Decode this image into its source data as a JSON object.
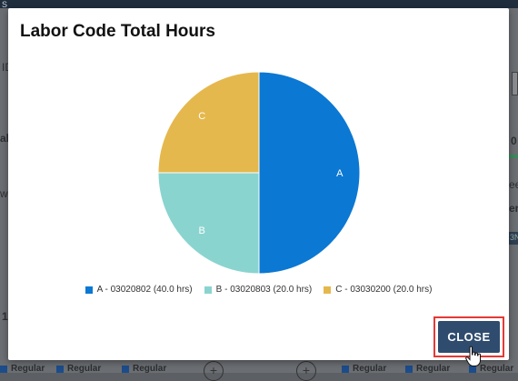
{
  "background": {
    "fragments": [
      "S",
      "ID",
      "al",
      "w",
      "1",
      "0",
      "ee",
      "er",
      "3N"
    ],
    "row_tags": [
      "Regular",
      "Regular",
      "Regular",
      "Regular",
      "Regular",
      "Regular"
    ],
    "plus_glyph": "+"
  },
  "dialog": {
    "title": "Labor Code Total Hours",
    "close_label": "CLOSE"
  },
  "chart_data": {
    "type": "pie",
    "title": "Labor Code Total Hours",
    "slices": [
      {
        "label": "A",
        "legend": "A - 03020802 (40.0 hrs)",
        "value": 40.0,
        "color": "#0b78d3"
      },
      {
        "label": "B",
        "legend": "B - 03020803 (20.0 hrs)",
        "value": 20.0,
        "color": "#8ad4cf"
      },
      {
        "label": "C",
        "legend": "C - 03030200 (20.0 hrs)",
        "value": 20.0,
        "color": "#e5b84d"
      }
    ],
    "legend_position": "bottom"
  }
}
